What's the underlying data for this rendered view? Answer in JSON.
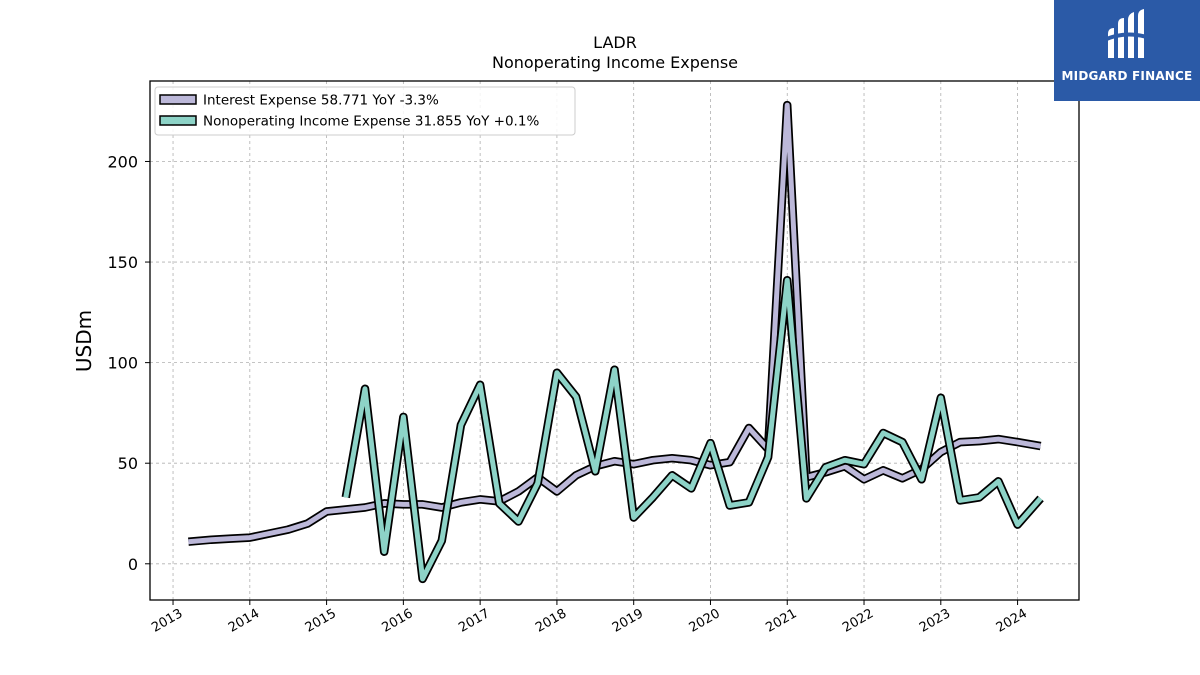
{
  "logo": {
    "text": "MIDGARD FINANCE",
    "icon": "midgard-logo-icon",
    "background": "#2b5aa7"
  },
  "chart_data": {
    "type": "line",
    "title": "LADR",
    "subtitle": "Nonoperating Income Expense",
    "ylabel": "USDm",
    "xlabel": "",
    "ylim": [
      -18,
      240
    ],
    "xlim": [
      2012.7,
      2024.8
    ],
    "yticks": [
      0,
      50,
      100,
      150,
      200
    ],
    "xticks": [
      2013,
      2014,
      2015,
      2016,
      2017,
      2018,
      2019,
      2020,
      2021,
      2022,
      2023,
      2024
    ],
    "grid": true,
    "legend_position": "top-left",
    "series": [
      {
        "name": "Interest Expense  58.771 YoY -3.3%",
        "color": "#bcb8d9",
        "points": [
          [
            2013.2,
            11
          ],
          [
            2013.5,
            12
          ],
          [
            2013.75,
            12.5
          ],
          [
            2014.0,
            13
          ],
          [
            2014.25,
            15
          ],
          [
            2014.5,
            17
          ],
          [
            2014.75,
            20
          ],
          [
            2015.0,
            26
          ],
          [
            2015.25,
            27
          ],
          [
            2015.5,
            28
          ],
          [
            2015.75,
            30
          ],
          [
            2016.0,
            29.5
          ],
          [
            2016.25,
            29.5
          ],
          [
            2016.5,
            28
          ],
          [
            2016.75,
            30.5
          ],
          [
            2017.0,
            32
          ],
          [
            2017.25,
            31
          ],
          [
            2017.5,
            36
          ],
          [
            2017.75,
            43
          ],
          [
            2018.0,
            36
          ],
          [
            2018.25,
            44
          ],
          [
            2018.5,
            48.5
          ],
          [
            2018.75,
            51
          ],
          [
            2019.0,
            49.5
          ],
          [
            2019.25,
            51.5
          ],
          [
            2019.5,
            52.5
          ],
          [
            2019.75,
            51.5
          ],
          [
            2020.0,
            49
          ],
          [
            2020.25,
            50.5
          ],
          [
            2020.5,
            67.5
          ],
          [
            2020.75,
            57
          ],
          [
            2021.0,
            228
          ],
          [
            2021.25,
            43
          ],
          [
            2021.5,
            45.5
          ],
          [
            2021.75,
            48.5
          ],
          [
            2022.0,
            42
          ],
          [
            2022.25,
            46.5
          ],
          [
            2022.5,
            42.5
          ],
          [
            2022.75,
            47
          ],
          [
            2023.0,
            55.5
          ],
          [
            2023.25,
            60.5
          ],
          [
            2023.5,
            61
          ],
          [
            2023.75,
            62
          ],
          [
            2024.0,
            60.5
          ],
          [
            2024.3,
            58.5
          ]
        ]
      },
      {
        "name": "Nonoperating Income Expense  31.855 YoY +0.1%",
        "color": "#8dd3c7",
        "points": [
          [
            2015.25,
            33
          ],
          [
            2015.5,
            87
          ],
          [
            2015.75,
            6
          ],
          [
            2016.0,
            73
          ],
          [
            2016.25,
            -7.5
          ],
          [
            2016.5,
            11.5
          ],
          [
            2016.75,
            69
          ],
          [
            2017.0,
            89
          ],
          [
            2017.25,
            30
          ],
          [
            2017.5,
            21
          ],
          [
            2017.75,
            40
          ],
          [
            2018.0,
            95
          ],
          [
            2018.25,
            83
          ],
          [
            2018.5,
            46
          ],
          [
            2018.75,
            96.5
          ],
          [
            2019.0,
            23
          ],
          [
            2019.25,
            33
          ],
          [
            2019.5,
            44
          ],
          [
            2019.75,
            37.5
          ],
          [
            2020.0,
            60
          ],
          [
            2020.25,
            29
          ],
          [
            2020.5,
            30.5
          ],
          [
            2020.75,
            53
          ],
          [
            2021.0,
            141
          ],
          [
            2021.25,
            32.5
          ],
          [
            2021.5,
            48
          ],
          [
            2021.75,
            51.5
          ],
          [
            2022.0,
            49.5
          ],
          [
            2022.25,
            65
          ],
          [
            2022.5,
            60.5
          ],
          [
            2022.75,
            42
          ],
          [
            2023.0,
            82.5
          ],
          [
            2023.25,
            31.5
          ],
          [
            2023.5,
            33
          ],
          [
            2023.75,
            41
          ],
          [
            2024.0,
            19.5
          ],
          [
            2024.3,
            32.5
          ]
        ]
      }
    ]
  }
}
